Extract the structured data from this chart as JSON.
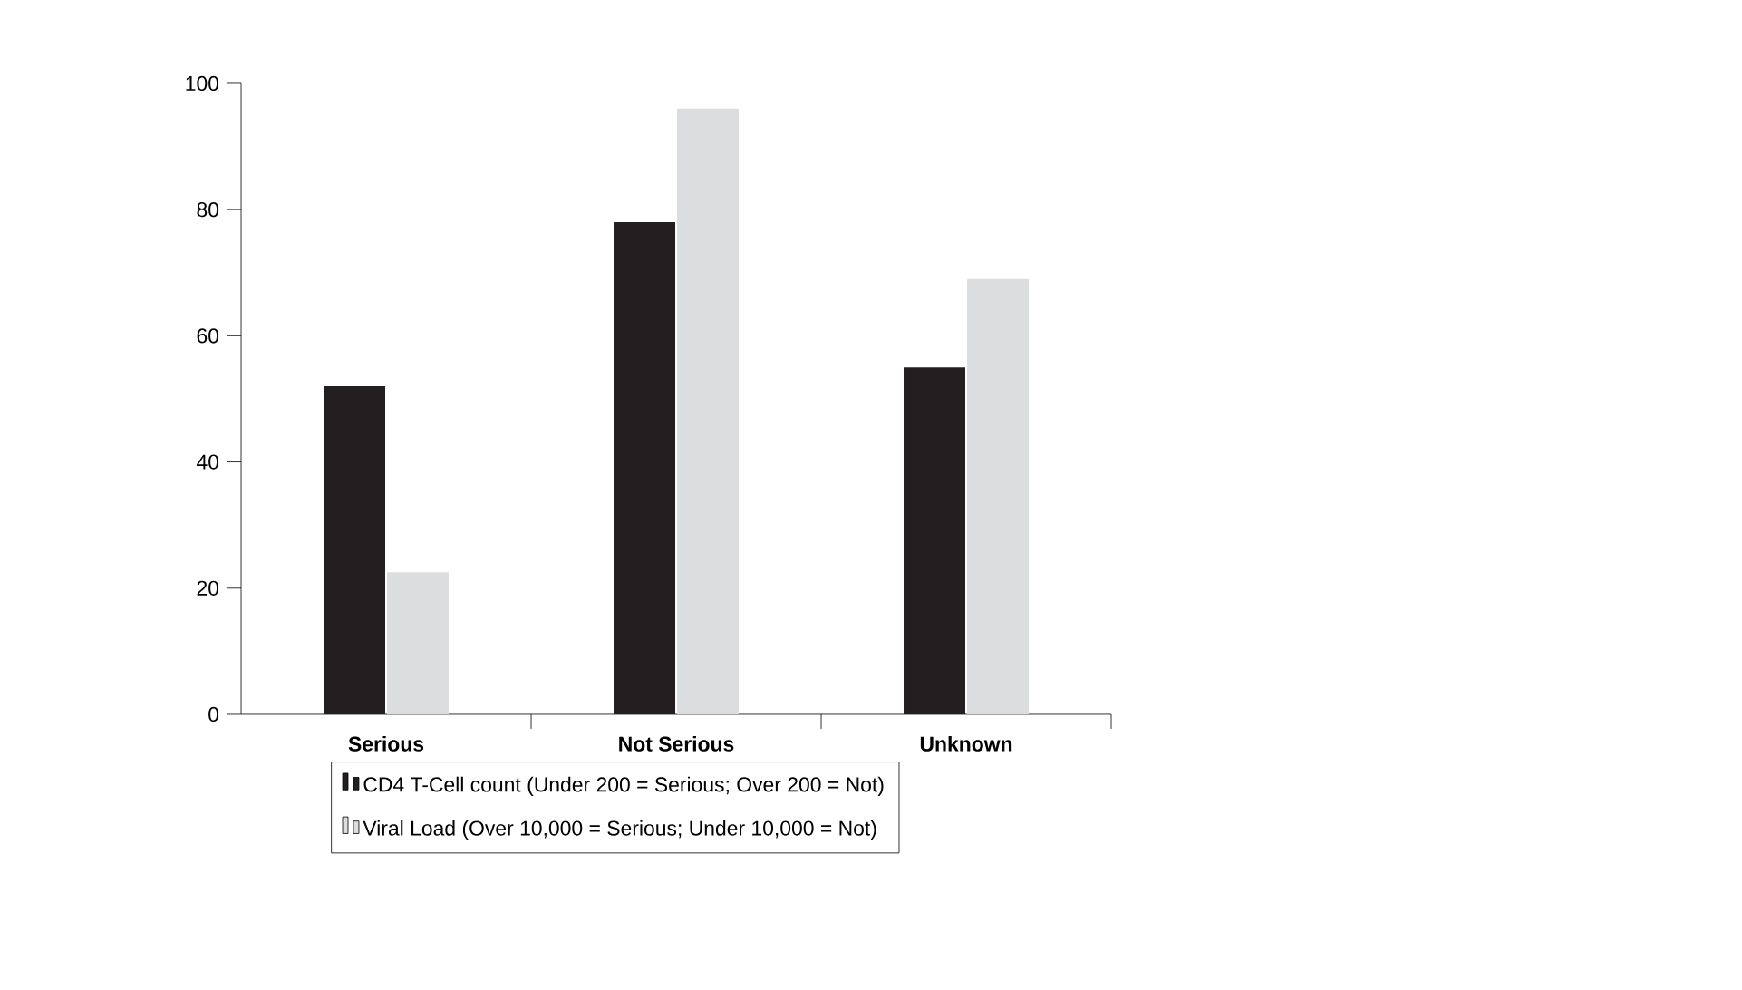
{
  "chart_data": {
    "type": "bar",
    "categories": [
      "Serious",
      "Not Serious",
      "Unknown"
    ],
    "series": [
      {
        "name": "CD4 T-Cell count (Under 200 = Serious; Over 200 = Not)",
        "color": "#231f20",
        "values": [
          52,
          78,
          55
        ]
      },
      {
        "name": "Viral Load (Over 10,000 = Serious; Under 10,000 = Not)",
        "color": "#dcdddf",
        "values": [
          22.5,
          96,
          69
        ]
      }
    ],
    "ylim": [
      0,
      100
    ],
    "yticks": [
      0,
      20,
      40,
      60,
      80,
      100
    ],
    "grid": false,
    "legend": "bottom"
  }
}
